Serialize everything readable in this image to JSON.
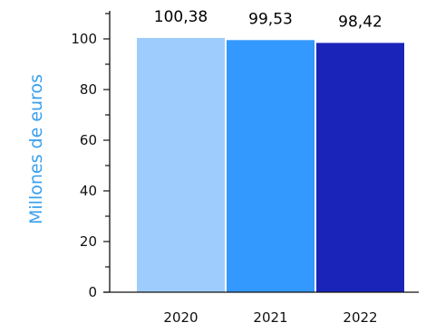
{
  "chart_data": {
    "type": "bar",
    "categories": [
      "2020",
      "2021",
      "2022"
    ],
    "values": [
      100.38,
      99.53,
      98.42
    ],
    "value_labels": [
      "100,38",
      "99,53",
      "98,42"
    ],
    "ylabel": "Millones de euros",
    "xlabel": "",
    "ylim": [
      0,
      110
    ],
    "yticks": [
      0,
      20,
      40,
      60,
      80,
      100
    ],
    "grid": false,
    "legend": "none",
    "colors": [
      "#9ecdfd",
      "#3399ff",
      "#1a24b8"
    ],
    "ylabel_color": "#3aa0ee",
    "axis_color": "#111111"
  }
}
